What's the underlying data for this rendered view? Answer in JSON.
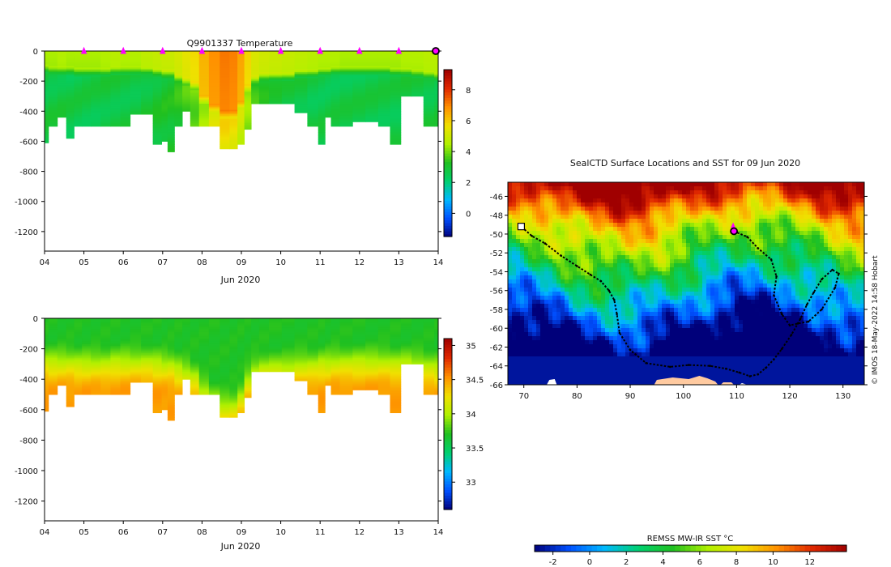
{
  "chart_data": [
    {
      "type": "heatmap",
      "name": "temperature-section",
      "title": "Q9901337  Temperature",
      "xlabel": "Jun 2020",
      "ylabel": "",
      "x_ticks": [
        "04",
        "05",
        "06",
        "07",
        "08",
        "09",
        "10",
        "11",
        "12",
        "13",
        "14"
      ],
      "xlim": [
        4,
        14
      ],
      "ylim": [
        -1330,
        0
      ],
      "y_ticks": [
        0,
        -200,
        -400,
        -600,
        -800,
        -1000,
        -1200
      ],
      "colorbar": {
        "min": -1.5,
        "max": 9.3,
        "ticks": [
          0,
          2,
          4,
          6,
          8
        ],
        "colors": [
          "#00007a",
          "#0050ff",
          "#00b8ff",
          "#00d070",
          "#20c020",
          "#b0f000",
          "#f0e000",
          "#ff9000",
          "#e02800",
          "#a00000"
        ]
      },
      "profile_markers_day": [
        5,
        6,
        7,
        8,
        9,
        10,
        11,
        12,
        13
      ],
      "current_marker_day": 14,
      "profiles": {
        "day": [
          4.0,
          4.2,
          4.45,
          4.65,
          4.85,
          5.05,
          5.3,
          5.55,
          5.8,
          6.05,
          6.3,
          6.6,
          6.9,
          7.05,
          7.2,
          7.4,
          7.6,
          7.8,
          8.05,
          8.3,
          8.6,
          8.8,
          9.0,
          9.15,
          9.35,
          9.55,
          9.85,
          10.2,
          10.5,
          10.85,
          11.05,
          11.2,
          11.35,
          11.65,
          12.0,
          12.3,
          12.65,
          12.9,
          13.2,
          13.45,
          13.8,
          14.0
        ],
        "max_depth": [
          610,
          500,
          440,
          580,
          500,
          500,
          500,
          500,
          500,
          500,
          420,
          420,
          620,
          600,
          670,
          500,
          400,
          500,
          500,
          500,
          650,
          650,
          620,
          520,
          350,
          350,
          350,
          350,
          410,
          500,
          620,
          440,
          500,
          500,
          470,
          470,
          500,
          620,
          300,
          300,
          500,
          500
        ],
        "thermocline_depth": [
          120,
          130,
          130,
          130,
          140,
          140,
          140,
          140,
          130,
          130,
          130,
          130,
          140,
          150,
          150,
          180,
          200,
          230,
          320,
          380,
          420,
          420,
          360,
          250,
          190,
          170,
          170,
          170,
          150,
          150,
          140,
          140,
          130,
          130,
          130,
          130,
          130,
          140,
          140,
          150,
          160,
          170
        ],
        "surface_temp": [
          4.5,
          4.5,
          4.6,
          4.5,
          4.5,
          4.5,
          4.5,
          4.6,
          4.7,
          4.6,
          4.6,
          4.8,
          4.9,
          5.0,
          5.0,
          5.2,
          5.5,
          5.8,
          6.4,
          6.9,
          7.2,
          7.1,
          6.6,
          5.9,
          5.3,
          5.1,
          5.0,
          4.9,
          4.8,
          4.7,
          4.6,
          4.6,
          4.6,
          4.5,
          4.5,
          4.5,
          4.5,
          4.5,
          4.6,
          4.6,
          4.7,
          4.7
        ],
        "deep_temp": [
          2.8,
          2.8,
          2.8,
          2.7,
          2.7,
          2.7,
          2.7,
          2.8,
          2.8,
          2.8,
          2.8,
          2.9,
          3.0,
          3.1,
          3.1,
          3.3,
          3.6,
          3.9,
          4.5,
          5.2,
          5.7,
          5.6,
          5.0,
          4.2,
          3.4,
          3.1,
          2.9,
          2.8,
          2.8,
          2.7,
          2.7,
          2.7,
          2.7,
          2.7,
          2.7,
          2.7,
          2.7,
          2.7,
          2.8,
          2.8,
          2.8,
          2.8
        ]
      }
    },
    {
      "type": "heatmap",
      "name": "salinity-section",
      "title": "",
      "xlabel": "Jun 2020",
      "ylabel": "",
      "x_ticks": [
        "04",
        "05",
        "06",
        "07",
        "08",
        "09",
        "10",
        "11",
        "12",
        "13",
        "14"
      ],
      "xlim": [
        4,
        14
      ],
      "ylim": [
        -1330,
        0
      ],
      "y_ticks": [
        0,
        -200,
        -400,
        -600,
        -800,
        -1000,
        -1200
      ],
      "colorbar": {
        "min": 32.6,
        "max": 35.1,
        "ticks": [
          "33",
          "33.5",
          "34",
          "34.5",
          "35"
        ],
        "tick_values": [
          33,
          33.5,
          34,
          34.5,
          35
        ],
        "colors": [
          "#00007a",
          "#0050ff",
          "#00b8ff",
          "#00d070",
          "#20c020",
          "#b0f000",
          "#f0e000",
          "#ff9000",
          "#e02800",
          "#a00000"
        ]
      },
      "surface_salinity": 33.7,
      "deep_salinity": 34.5,
      "halocline_depth_range": [
        150,
        500
      ]
    },
    {
      "type": "heatmap",
      "name": "sst-map",
      "title": "SealCTD Surface Locations and SST for 09 Jun 2020",
      "xlabel": "",
      "ylabel": "",
      "xlim": [
        67,
        134
      ],
      "ylim": [
        -66,
        -44.5
      ],
      "x_ticks": [
        70,
        80,
        90,
        100,
        110,
        120,
        130
      ],
      "y_ticks": [
        -46,
        -48,
        -50,
        -52,
        -54,
        -56,
        -58,
        -60,
        -62,
        -64,
        -66
      ],
      "track": {
        "lon": [
          109.5,
          112,
          114,
          116.5,
          117.5,
          117,
          118.5,
          120,
          121.5,
          123.5,
          126,
          128.5,
          129.2,
          128,
          126,
          124.5,
          123.2,
          122,
          120.3,
          118.5,
          117,
          115.5,
          114,
          112.5,
          110.5,
          108,
          105,
          101,
          97.5,
          93,
          90,
          88,
          87.5,
          87,
          86,
          84.5,
          82.5,
          80,
          77,
          74,
          71.5,
          69.5
        ],
        "lat": [
          -49.7,
          -50.3,
          -51.5,
          -52.7,
          -54.5,
          -56.5,
          -58.5,
          -59.7,
          -59.5,
          -59.3,
          -58,
          -55.7,
          -54.2,
          -53.8,
          -54.8,
          -56.2,
          -57.5,
          -59,
          -60.7,
          -62.2,
          -63.3,
          -64.2,
          -64.9,
          -65.1,
          -64.7,
          -64.3,
          -64,
          -63.9,
          -64.1,
          -63.7,
          -62.3,
          -60.5,
          -58.5,
          -57,
          -56,
          -55,
          -54.3,
          -53.4,
          -52.3,
          -51,
          -50.2,
          -49.2
        ]
      },
      "current_position": {
        "lon": 109.5,
        "lat": -49.7
      },
      "deployment_position": {
        "lon": 69.5,
        "lat": -49.2
      },
      "colorbar": {
        "label": "REMSS MW-IR SST °C",
        "min": -3,
        "max": 14,
        "ticks": [
          -2,
          0,
          2,
          4,
          6,
          8,
          10,
          12
        ],
        "colors": [
          "#00007a",
          "#0050ff",
          "#00b8ff",
          "#00d070",
          "#20c020",
          "#b0f000",
          "#f0e000",
          "#ff9000",
          "#e02800",
          "#a00000"
        ]
      },
      "credit": "© IMOS 18-May-2022 14:58 Hobart"
    }
  ]
}
